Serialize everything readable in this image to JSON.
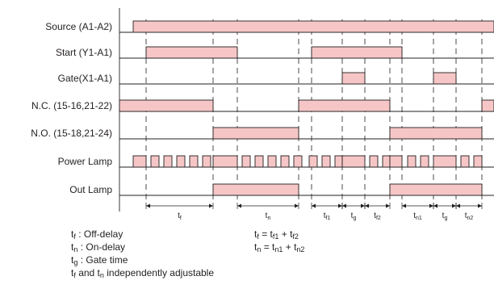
{
  "signals": [
    {
      "id": "source",
      "label": "Source (A1-A2)",
      "on": [
        [
          165,
          612
        ]
      ]
    },
    {
      "id": "start",
      "label": "Start (Y1-A1)",
      "on": [
        [
          181,
          294
        ],
        [
          386,
          498
        ]
      ]
    },
    {
      "id": "gate",
      "label": "Gate(X1-A1)",
      "on": [
        [
          424,
          452
        ],
        [
          537,
          565
        ]
      ]
    },
    {
      "id": "nc",
      "label": "N.C. (15-16,21-22)",
      "on": [
        [
          148,
          264
        ],
        [
          370,
          483
        ],
        [
          597,
          612
        ]
      ]
    },
    {
      "id": "no",
      "label": "N.O. (15-18,21-24)",
      "on": [
        [
          264,
          370
        ],
        [
          483,
          597
        ]
      ]
    },
    {
      "id": "power-lamp",
      "label": "Power Lamp",
      "on": [
        [
          165,
          181
        ],
        [
          187,
          197
        ],
        [
          203,
          213
        ],
        [
          219,
          229
        ],
        [
          235,
          245
        ],
        [
          251,
          261
        ],
        [
          264,
          294
        ],
        [
          300,
          310
        ],
        [
          316,
          326
        ],
        [
          332,
          342
        ],
        [
          348,
          358
        ],
        [
          364,
          374
        ],
        [
          383,
          393
        ],
        [
          399,
          409
        ],
        [
          415,
          424
        ],
        [
          424,
          452
        ],
        [
          458,
          468
        ],
        [
          474,
          483
        ],
        [
          483,
          498
        ],
        [
          505,
          515
        ],
        [
          521,
          531
        ],
        [
          537,
          565
        ],
        [
          571,
          581
        ],
        [
          587,
          597
        ]
      ]
    },
    {
      "id": "out-lamp",
      "label": "Out Lamp",
      "on": [
        [
          264,
          370
        ],
        [
          483,
          597
        ]
      ]
    }
  ],
  "dividers": [
    181,
    264,
    294,
    370,
    386,
    424,
    452,
    483,
    498,
    537,
    565,
    597
  ],
  "dimensions": [
    {
      "from": 181,
      "to": 264,
      "main": "t",
      "sub": "f"
    },
    {
      "from": 294,
      "to": 370,
      "main": "t",
      "sub": "n"
    },
    {
      "from": 386,
      "to": 424,
      "main": "t",
      "sub": "f1"
    },
    {
      "from": 424,
      "to": 452,
      "main": "t",
      "sub": "g"
    },
    {
      "from": 452,
      "to": 483,
      "main": "t",
      "sub": "f2"
    },
    {
      "from": 498,
      "to": 537,
      "main": "t",
      "sub": "n1"
    },
    {
      "from": 537,
      "to": 565,
      "main": "t",
      "sub": "g"
    },
    {
      "from": 565,
      "to": 597,
      "main": "t",
      "sub": "n2"
    }
  ],
  "legend": {
    "off_delay": {
      "t": "t",
      "sub": "f",
      "text": " : Off-delay"
    },
    "on_delay": {
      "t": "t",
      "sub": "n",
      "text": " : On-delay"
    },
    "gate_time": {
      "t": "t",
      "sub": "g",
      "text": " : Gate time"
    },
    "adjustable": {
      "t1": "t",
      "sub1": "f",
      "mid": " and t",
      "sub2": "n",
      "text": " independently adjustable"
    },
    "tf_eq": {
      "lhs": "t",
      "lhs_sub": "f",
      "eq": " = t",
      "a_sub": "f1",
      "plus": " + t",
      "b_sub": "f2"
    },
    "tn_eq": {
      "lhs": "t",
      "lhs_sub": "n",
      "eq": " = t",
      "a_sub": "n1",
      "plus": " + t",
      "b_sub": "n2"
    }
  }
}
